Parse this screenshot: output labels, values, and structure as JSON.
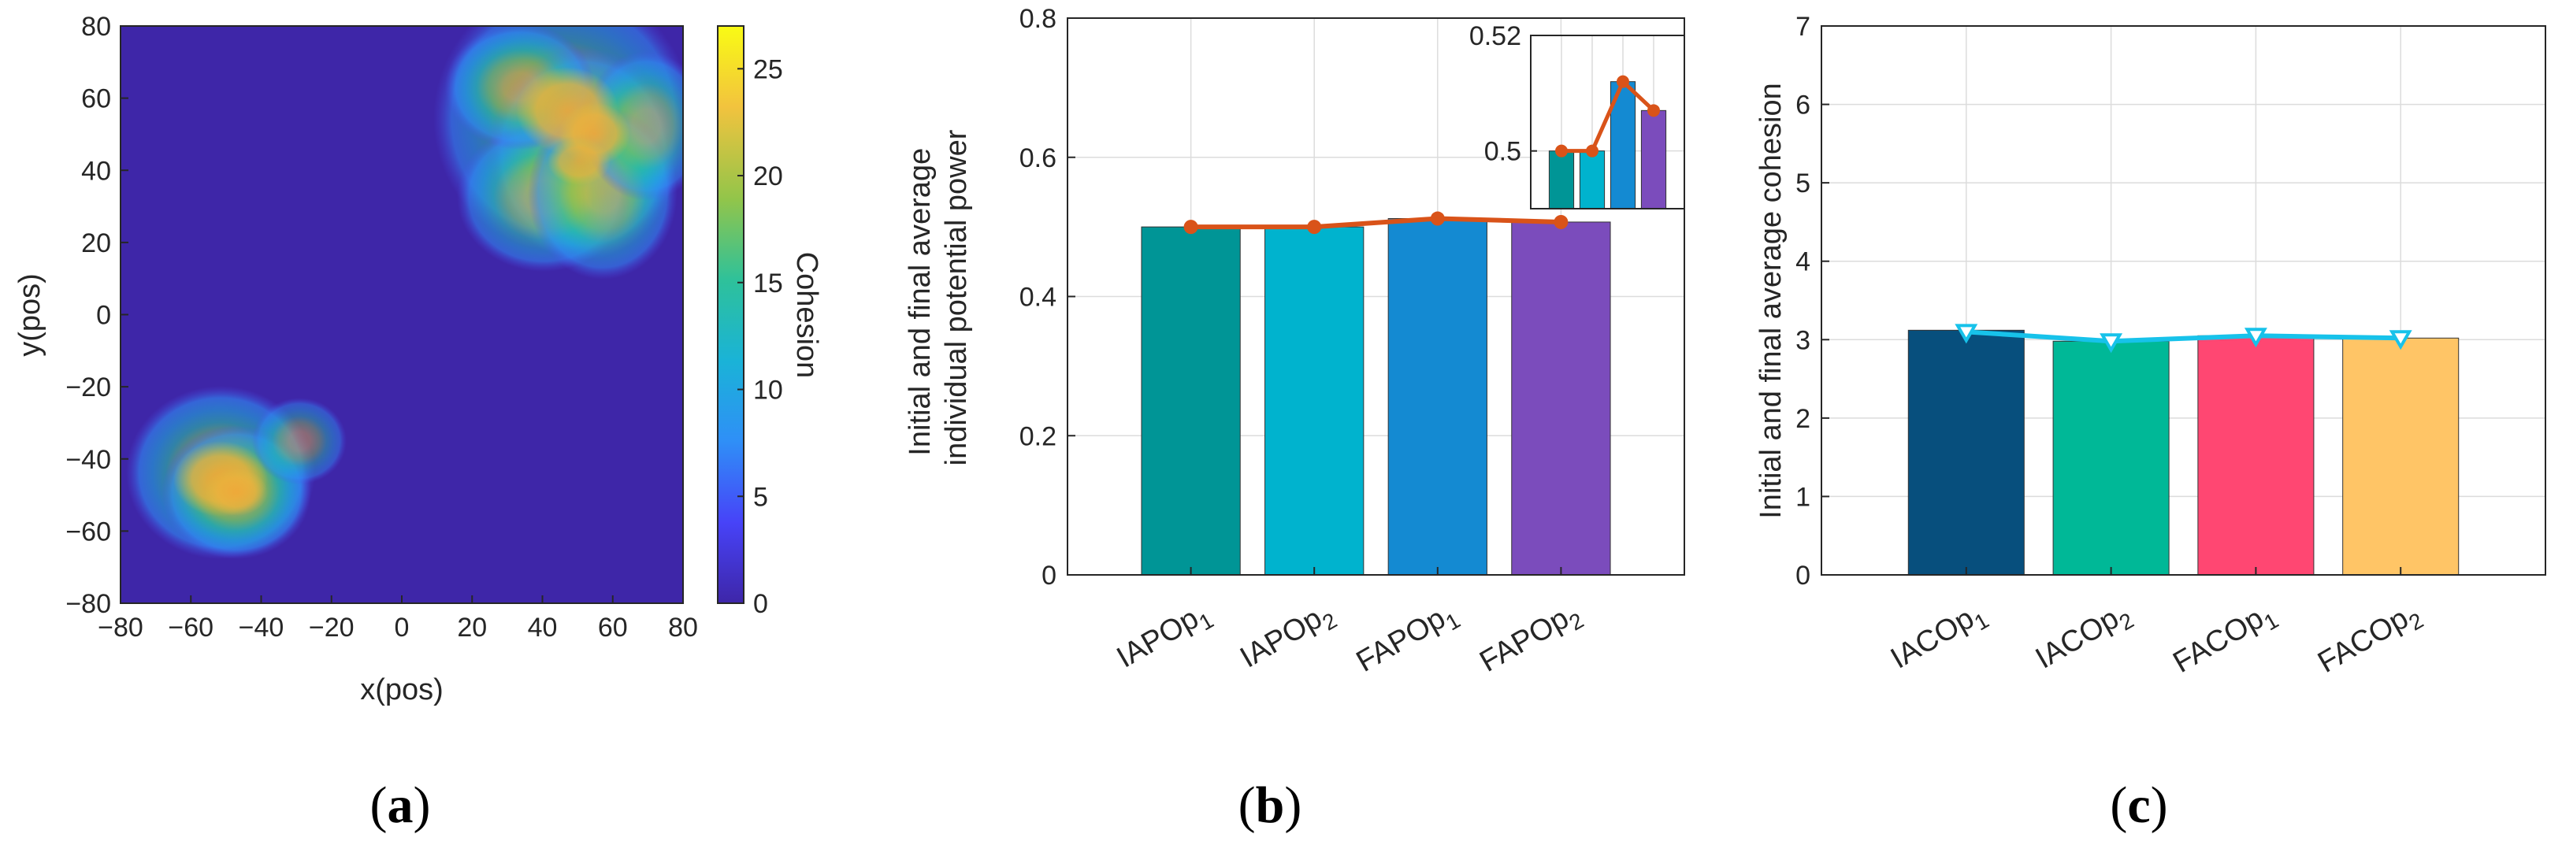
{
  "chart_data": [
    {
      "id": "a",
      "type": "heatmap",
      "title": "",
      "xlabel": "x(pos)",
      "ylabel": "y(pos)",
      "xlim": [
        -80,
        80
      ],
      "ylim": [
        -80,
        80
      ],
      "xticks": [
        "−80",
        "−60",
        "−40",
        "−20",
        "0",
        "20",
        "40",
        "60",
        "80"
      ],
      "yticks": [
        "80",
        "60",
        "40",
        "20",
        "0",
        "−20",
        "−40",
        "−60",
        "−80"
      ],
      "colorbar": {
        "label": "Cohesion",
        "range": [
          0,
          27
        ],
        "ticks": [
          "25",
          "20",
          "15",
          "10",
          "5",
          "0"
        ],
        "colors": [
          "#3e26a8",
          "#4743f8",
          "#2f8ff7",
          "#1ab3d7",
          "#2ec19a",
          "#92c54a",
          "#f2c33e",
          "#f9fb14"
        ]
      },
      "clusters": [
        {
          "name": "upper-right cluster",
          "center": [
            45,
            55
          ],
          "extent_radius": 35,
          "peak": 25
        },
        {
          "name": "lower-left cluster",
          "center": [
            -55,
            -48
          ],
          "extent_radius": 22,
          "peak": 23
        }
      ],
      "caption": "a"
    },
    {
      "id": "b",
      "type": "bar",
      "ylabel": [
        "Initial and final average",
        "individual potential power"
      ],
      "ylim": [
        0,
        0.8
      ],
      "yticks": [
        "0",
        "0.2",
        "0.4",
        "0.6",
        "0.8"
      ],
      "categories": [
        {
          "base": "IAPOp",
          "sub": "1"
        },
        {
          "base": "IAPOp",
          "sub": "2"
        },
        {
          "base": "FAPOp",
          "sub": "1"
        },
        {
          "base": "FAPOp",
          "sub": "2"
        }
      ],
      "values": [
        0.5,
        0.5,
        0.512,
        0.507
      ],
      "bar_colors": [
        "#009596",
        "#00b3ce",
        "#148ad2",
        "#7b4cbc"
      ],
      "line_color": "#d95319",
      "line_values": [
        0.5,
        0.5,
        0.512,
        0.507
      ],
      "inset": {
        "ylim": [
          0.49,
          0.52
        ],
        "yticks": [
          "0.52",
          "0.5"
        ],
        "values": [
          0.5,
          0.5,
          0.512,
          0.507
        ]
      },
      "caption": "b"
    },
    {
      "id": "c",
      "type": "bar",
      "ylabel": [
        "Initial and final average cohesion"
      ],
      "ylim": [
        0,
        7
      ],
      "yticks": [
        "0",
        "1",
        "2",
        "3",
        "4",
        "5",
        "6",
        "7"
      ],
      "categories": [
        {
          "base": "IACOp",
          "sub": "1"
        },
        {
          "base": "IACOp",
          "sub": "2"
        },
        {
          "base": "FACOp",
          "sub": "1"
        },
        {
          "base": "FACOp",
          "sub": "2"
        }
      ],
      "values": [
        3.12,
        2.98,
        3.05,
        3.02
      ],
      "bar_colors": [
        "#074f7d",
        "#00b897",
        "#ff4772",
        "#ffc566"
      ],
      "line_color": "#17c2ea",
      "line_values": [
        3.1,
        2.98,
        3.05,
        3.02
      ],
      "caption": "c"
    }
  ]
}
